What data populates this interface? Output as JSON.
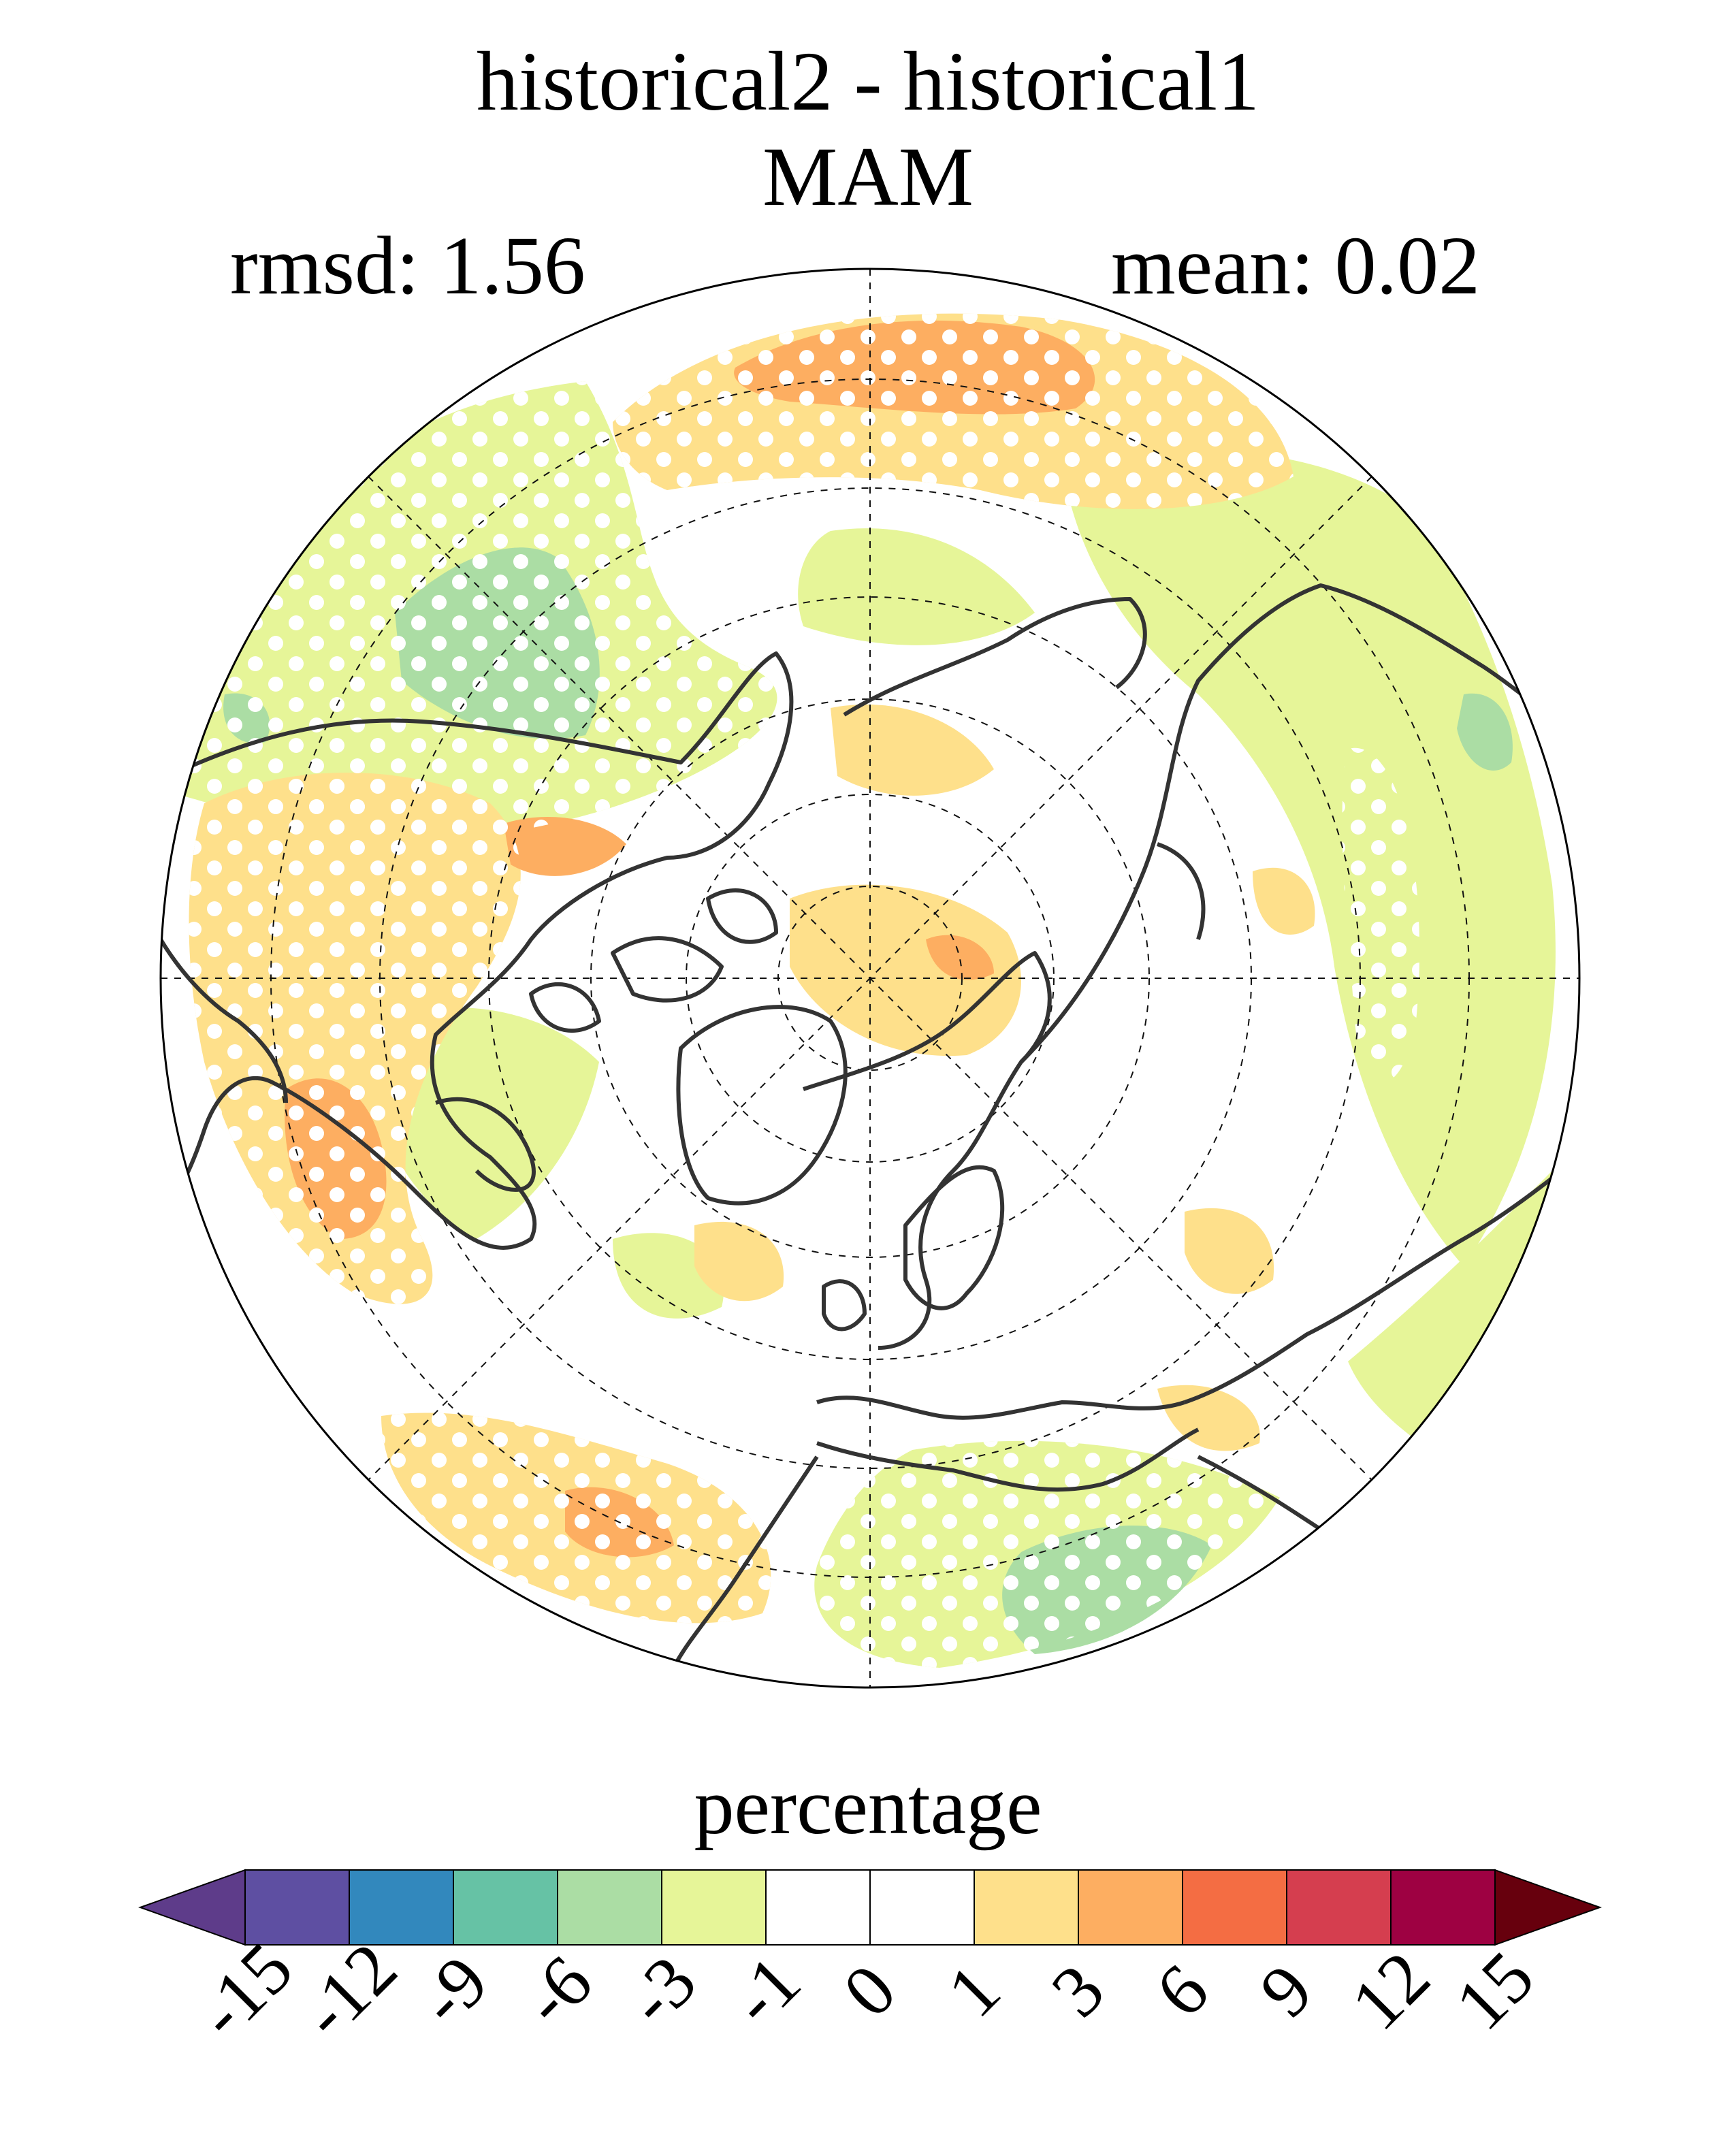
{
  "title": {
    "line1": "historical2 - historical1",
    "line2": "MAM",
    "rmsd": "rmsd: 1.56",
    "mean": "mean: 0.02"
  },
  "map": {
    "projection": "north-polar-stereographic",
    "stippling": "white dots mark significant differences"
  },
  "colorbar": {
    "label": "percentage",
    "tick_labels": [
      "-15",
      "-12",
      "-9",
      "-6",
      "-3",
      "-1",
      "0",
      "1",
      "3",
      "6",
      "9",
      "12",
      "15"
    ],
    "under_color": "#5e3c8a",
    "over_color": "#67000d",
    "box_colors": [
      "#5e4fa2",
      "#3288bd",
      "#66c2a5",
      "#abdda4",
      "#e6f598",
      "#ffffff",
      "#ffffff",
      "#fee08b",
      "#fdae61",
      "#f46d43",
      "#d53e4f",
      "#9e0142"
    ]
  },
  "colors": {
    "land_outline": "#333333",
    "grid": "#111111"
  }
}
